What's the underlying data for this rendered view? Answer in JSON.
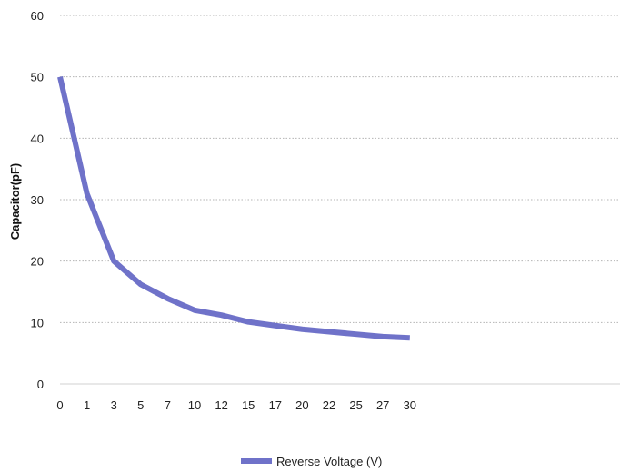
{
  "chart_data": {
    "type": "line",
    "ylabel": "Capacitor(pF)",
    "xlabel": "",
    "ylim": [
      0,
      60
    ],
    "y_ticks": [
      0,
      10,
      20,
      30,
      40,
      50,
      60
    ],
    "categories": [
      "0",
      "1",
      "3",
      "5",
      "7",
      "10",
      "12",
      "15",
      "17",
      "20",
      "22",
      "25",
      "27",
      "30"
    ],
    "grid": "horizontal dotted",
    "legend_position": "bottom",
    "series": [
      {
        "name": "Reverse Voltage (V)",
        "color": "#6f72c9",
        "values": [
          50,
          31,
          20,
          16.2,
          13.9,
          12,
          11.2,
          10.1,
          9.5,
          8.9,
          8.5,
          8.1,
          7.7,
          7.5
        ]
      }
    ]
  }
}
